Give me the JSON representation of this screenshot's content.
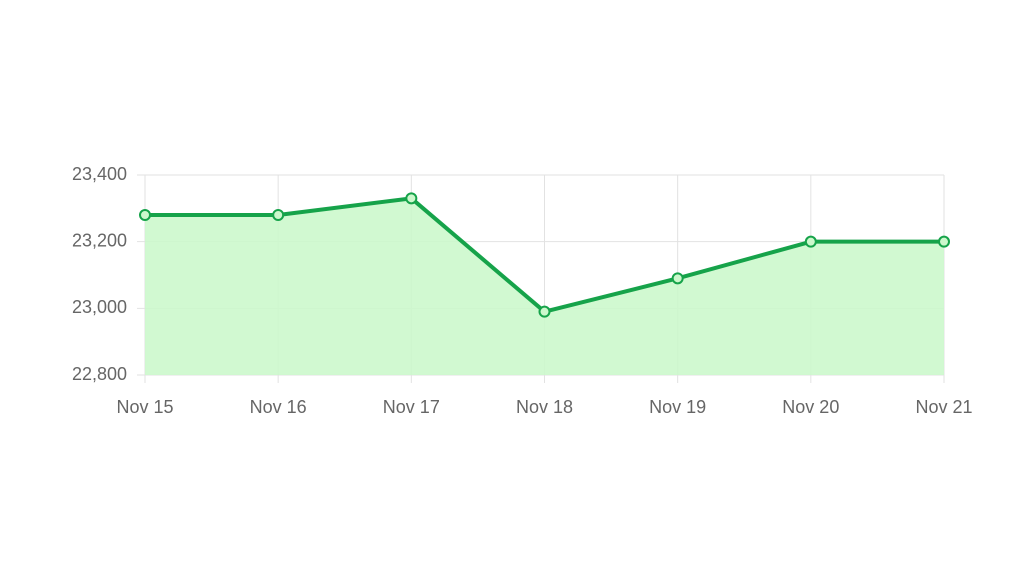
{
  "chart_data": {
    "type": "line",
    "categories": [
      "Nov 15",
      "Nov 16",
      "Nov 17",
      "Nov 18",
      "Nov 19",
      "Nov 20",
      "Nov 21"
    ],
    "values": [
      23280,
      23280,
      23330,
      22990,
      23090,
      23200,
      23200
    ],
    "color": "#16a34a",
    "fill_color": "#ccf8cc",
    "ylim": [
      22800,
      23400
    ],
    "yticks": [
      {
        "value": 22800,
        "label": "22,800"
      },
      {
        "value": 23000,
        "label": "23,000"
      },
      {
        "value": 23200,
        "label": "23,200"
      },
      {
        "value": 23400,
        "label": "23,400"
      }
    ],
    "grid": true
  }
}
